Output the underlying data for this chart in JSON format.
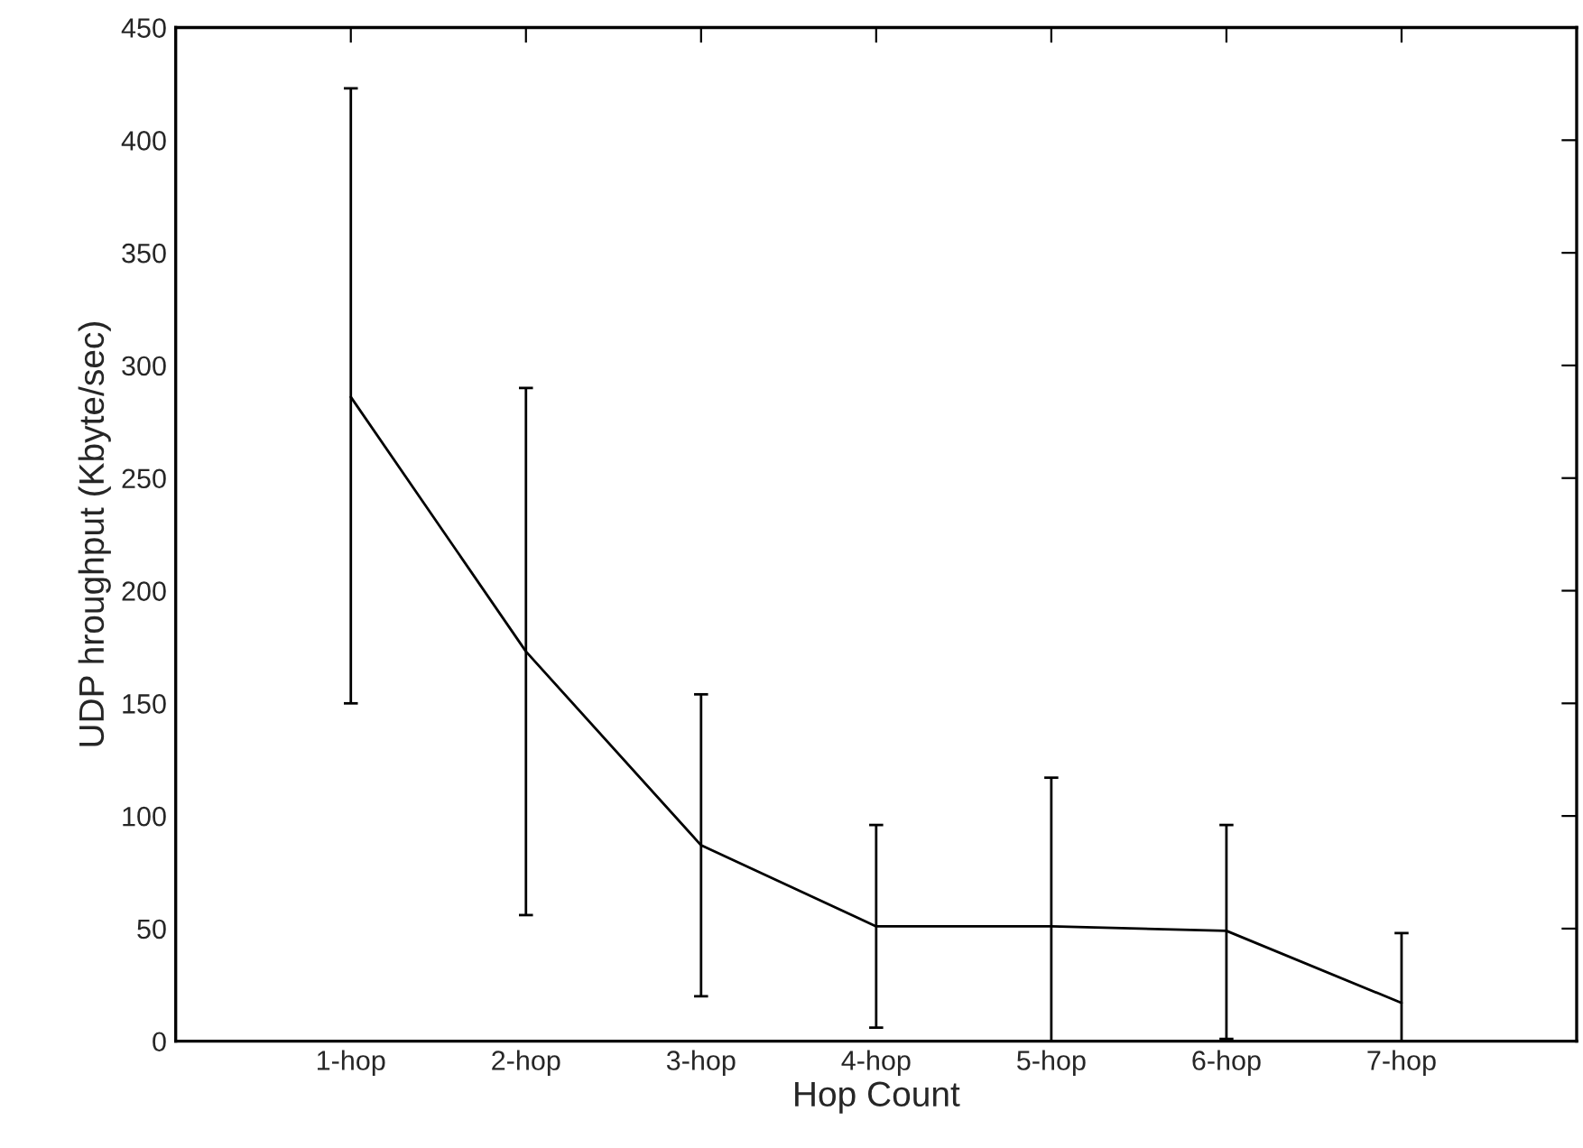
{
  "chart_data": {
    "type": "line",
    "xlabel": "Hop Count",
    "ylabel": "UDP hroughput (Kbyte/sec)",
    "categories": [
      "1-hop",
      "2-hop",
      "3-hop",
      "4-hop",
      "5-hop",
      "6-hop",
      "7-hop"
    ],
    "series": [
      {
        "color": "#000000",
        "values": [
          286,
          173,
          87,
          51,
          51,
          49,
          17
        ],
        "errors": [
          [
            150,
            423
          ],
          [
            56,
            290
          ],
          [
            20,
            154
          ],
          [
            6,
            96
          ],
          [
            0,
            117
          ],
          [
            1,
            96
          ],
          [
            0,
            48
          ]
        ]
      }
    ],
    "ylim": [
      0,
      450
    ],
    "yticks": [
      0,
      50,
      100,
      150,
      200,
      250,
      300,
      350,
      400,
      450
    ],
    "grid": false,
    "legend": false
  }
}
